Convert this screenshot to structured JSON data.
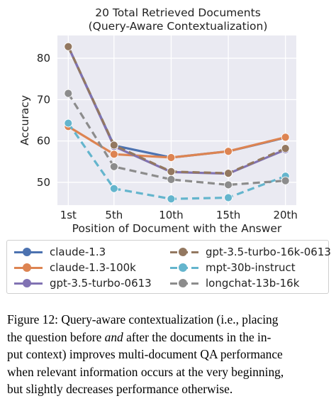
{
  "chart_data": {
    "type": "line",
    "title": [
      "20 Total Retrieved Documents",
      "(Query-Aware Contextualization)"
    ],
    "xlabel": "Position of Document with the Answer",
    "ylabel": "Accuracy",
    "categories": [
      "1st",
      "5th",
      "10th",
      "15th",
      "20th"
    ],
    "x": [
      1,
      5,
      10,
      15,
      20
    ],
    "yticks": [
      50,
      60,
      70,
      80
    ],
    "ylim": [
      44.5,
      85.5
    ],
    "xlim": [
      0.05,
      20.95
    ],
    "grid": true,
    "legend_position": "below",
    "series": [
      {
        "name": "claude-1.3",
        "color": "#4c72b0",
        "style": "solid",
        "values": [
          82.8,
          58.9,
          56.0,
          57.5,
          60.8
        ]
      },
      {
        "name": "claude-1.3-100k",
        "color": "#dd8452",
        "style": "solid",
        "values": [
          63.5,
          56.8,
          56.0,
          57.5,
          60.9
        ]
      },
      {
        "name": "gpt-3.5-turbo-0613",
        "color": "#8172b3",
        "style": "solid",
        "values": [
          82.8,
          58.7,
          52.5,
          52.1,
          57.9
        ]
      },
      {
        "name": "gpt-3.5-turbo-16k-0613",
        "color": "#937860",
        "style": "dashed",
        "values": [
          82.8,
          59.0,
          52.6,
          52.2,
          58.2
        ]
      },
      {
        "name": "mpt-30b-instruct",
        "color": "#64b5cd",
        "style": "dashed",
        "values": [
          64.3,
          48.5,
          46.0,
          46.3,
          51.5
        ]
      },
      {
        "name": "longchat-13b-16k",
        "color": "#8c8c8c",
        "style": "dashed",
        "values": [
          71.5,
          53.8,
          50.7,
          49.4,
          50.4
        ]
      }
    ]
  },
  "caption": {
    "lines": [
      "Figure 12: Query-aware contextualization (i.e., placing",
      "the question before and after the documents in the in-",
      "put context) improves multi-document QA performance",
      "when relevant information occurs at the very beginning,",
      "but slightly decreases performance otherwise."
    ]
  }
}
